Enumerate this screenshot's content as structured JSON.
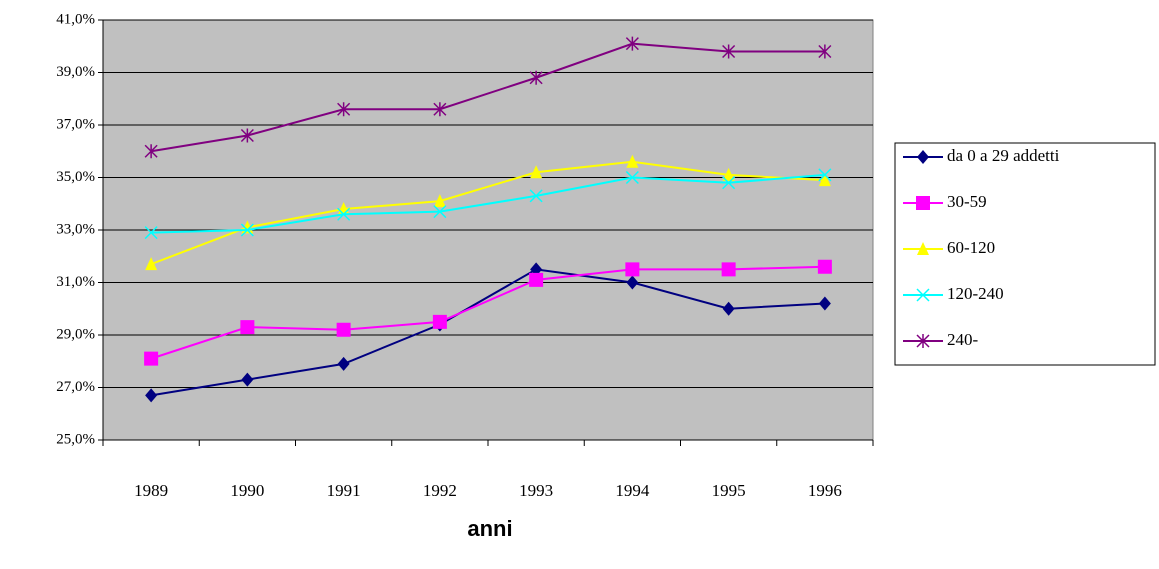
{
  "chart_data": {
    "type": "line",
    "x_label": "anni",
    "categories": [
      "1989",
      "1990",
      "1991",
      "1992",
      "1993",
      "1994",
      "1995",
      "1996"
    ],
    "series": [
      {
        "name": "da 0 a 29 addetti",
        "color": "#000080",
        "marker": "diamond",
        "values": [
          26.7,
          27.3,
          27.9,
          29.4,
          31.5,
          31.0,
          30.0,
          30.2
        ]
      },
      {
        "name": "30-59",
        "color": "#ff00ff",
        "marker": "square",
        "values": [
          28.1,
          29.3,
          29.2,
          29.5,
          31.1,
          31.5,
          31.5,
          31.6
        ]
      },
      {
        "name": "60-120",
        "color": "#ffff00",
        "marker": "triangle",
        "values": [
          31.7,
          33.1,
          33.8,
          34.1,
          35.2,
          35.6,
          35.1,
          34.9
        ]
      },
      {
        "name": "120-240",
        "color": "#00ffff",
        "marker": "x",
        "values": [
          32.9,
          33.0,
          33.6,
          33.7,
          34.3,
          35.0,
          34.8,
          35.1
        ]
      },
      {
        "name": "240-",
        "color": "#800080",
        "marker": "asterisk",
        "values": [
          36.0,
          36.6,
          37.6,
          37.6,
          38.8,
          40.1,
          39.8,
          39.8
        ]
      }
    ],
    "ylim": [
      25,
      41
    ],
    "yticks": [
      {
        "value": 25,
        "label": "25,0%"
      },
      {
        "value": 27,
        "label": "27,0%"
      },
      {
        "value": 29,
        "label": "29,0%"
      },
      {
        "value": 31,
        "label": "31,0%"
      },
      {
        "value": 33,
        "label": "33,0%"
      },
      {
        "value": 35,
        "label": "35,0%"
      },
      {
        "value": 37,
        "label": "37,0%"
      },
      {
        "value": 39,
        "label": "39,0%"
      },
      {
        "value": 41,
        "label": "41,0%"
      }
    ],
    "grid": true,
    "plot_background": "#c0c0c0",
    "legend": "right"
  }
}
